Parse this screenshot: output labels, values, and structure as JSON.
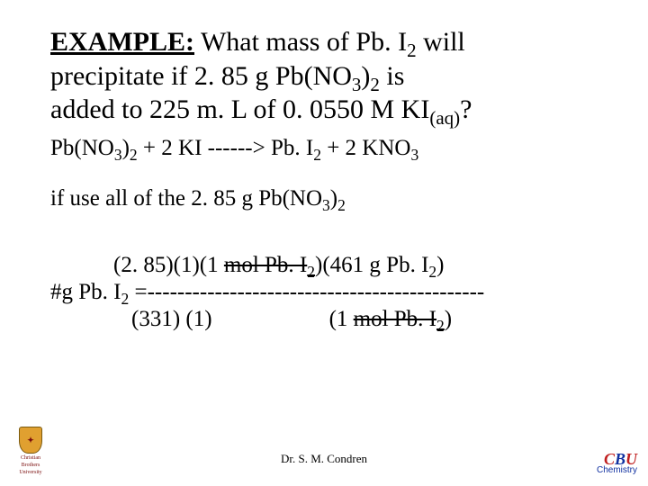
{
  "title": {
    "lead": "EXAMPLE:",
    "rest_l1a": " What mass of Pb. I",
    "rest_l1b": " will",
    "rest_l2a": "precipitate if 2. 85 g Pb(NO",
    "rest_l2b": ")",
    "rest_l2c": " is",
    "rest_l3a": "added to 225 m. L of 0. 0550 M KI",
    "rest_l3b": "?",
    "sub2": "2",
    "sub3": "3",
    "subaq": "(aq)"
  },
  "equation": {
    "a": "Pb(NO",
    "b": ")",
    "c": " + 2 KI ------> Pb. I",
    "d": " + 2 KNO",
    "sub2": "2",
    "sub3": "3"
  },
  "condition": {
    "a": "if use all of the 2. 85 g Pb(NO",
    "b": ")",
    "sub2": "2",
    "sub3": "3"
  },
  "calc": {
    "lhs_a": "#g Pb. I",
    "lhs_b": " = ",
    "num_a": "(2. 85)(1)(1 ",
    "num_strike": "mol Pb. I",
    "num_b": ")(461 g Pb. I",
    "num_c": ")",
    "bar": "---------------------------------------------",
    "den_a": "(331)  (1)",
    "den_b": "(1 ",
    "den_strike": "mol Pb. I",
    "den_c": ")",
    "sub2": "2"
  },
  "footer": {
    "author": "Dr. S. M. Condren"
  },
  "logo_right": {
    "c1": "C",
    "c2": "B",
    "c3": "U",
    "sub": "Chemistry"
  },
  "logo_left": {
    "shield": "✦",
    "line1": "Christian",
    "line2": "Brothers",
    "line3": "University"
  }
}
